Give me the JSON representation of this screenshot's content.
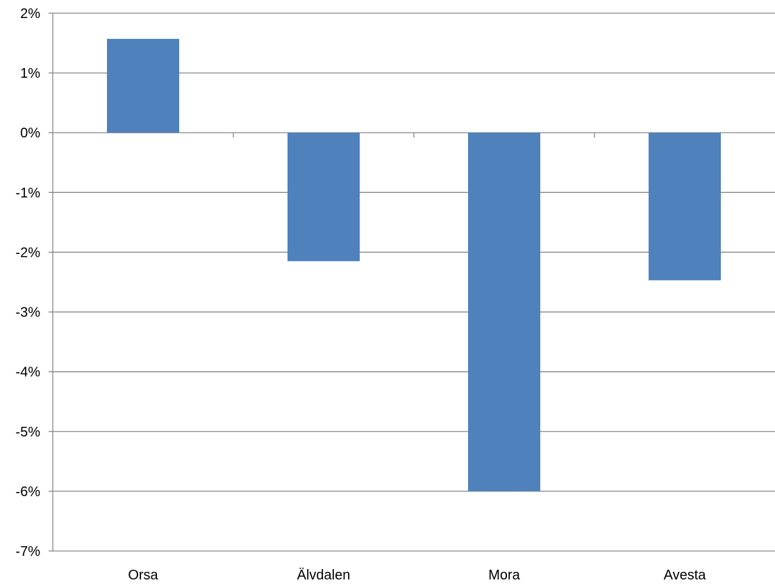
{
  "chart_data": {
    "type": "bar",
    "categories": [
      "Orsa",
      "Älvdalen",
      "Mora",
      "Avesta"
    ],
    "values": [
      1.57,
      -2.15,
      -6.0,
      -2.47
    ],
    "value_unit": "%",
    "ylim": [
      -7,
      2
    ],
    "y_ticks": [
      2,
      1,
      0,
      -1,
      -2,
      -3,
      -4,
      -5,
      -6,
      -7
    ],
    "y_tick_labels": [
      "2%",
      "1%",
      "0%",
      "-1%",
      "-2%",
      "-3%",
      "-4%",
      "-5%",
      "-6%",
      "-7%"
    ],
    "grid": true,
    "legend": "none",
    "title": "",
    "xlabel": "",
    "ylabel": "",
    "bar_color": "#4F81BD",
    "grid_color": "#868686"
  }
}
